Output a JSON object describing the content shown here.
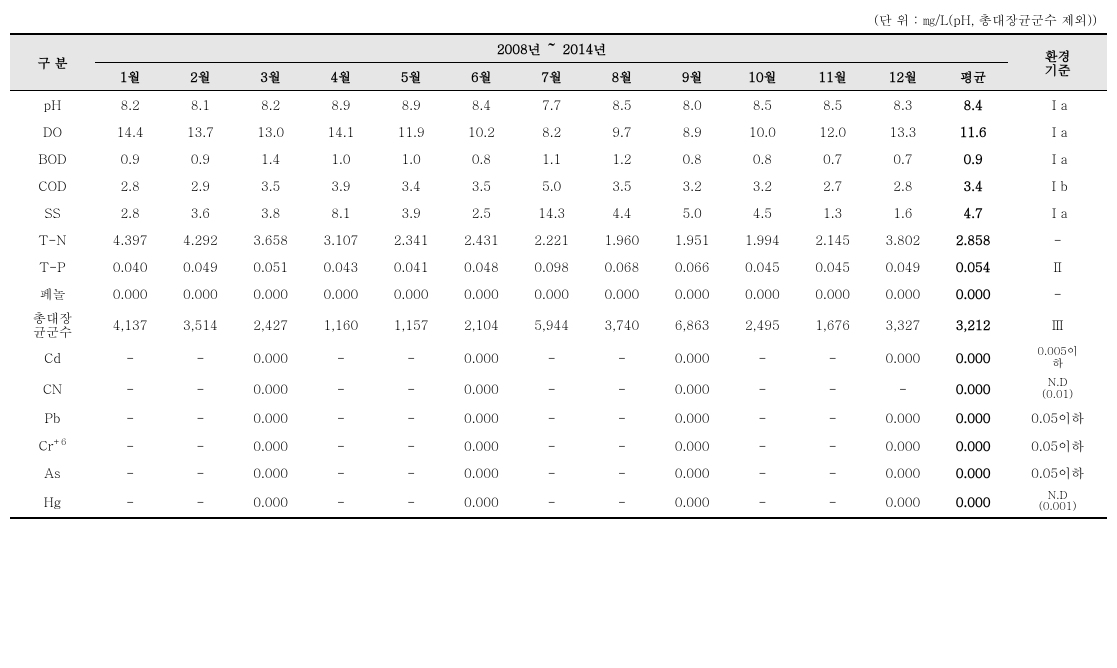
{
  "unit_note": "(단 위 : ㎎/L(pH, 총대장균군수 제외))",
  "header": {
    "category": "구 분",
    "year_range": "2008년 ～ 2014년",
    "env_std": "환경\n기준",
    "months": [
      "1월",
      "2월",
      "3월",
      "4월",
      "5월",
      "6월",
      "7월",
      "8월",
      "9월",
      "10월",
      "11월",
      "12월",
      "평균"
    ]
  },
  "rows": [
    {
      "label": "pH",
      "vals": [
        "8.2",
        "8.1",
        "8.2",
        "8.9",
        "8.9",
        "8.4",
        "7.7",
        "8.5",
        "8.0",
        "8.5",
        "8.5",
        "8.3"
      ],
      "avg": "8.4",
      "env": "Ⅰa"
    },
    {
      "label": "DO",
      "vals": [
        "14.4",
        "13.7",
        "13.0",
        "14.1",
        "11.9",
        "10.2",
        "8.2",
        "9.7",
        "8.9",
        "10.0",
        "12.0",
        "13.3"
      ],
      "avg": "11.6",
      "env": "Ⅰa"
    },
    {
      "label": "BOD",
      "vals": [
        "0.9",
        "0.9",
        "1.4",
        "1.0",
        "1.0",
        "0.8",
        "1.1",
        "1.2",
        "0.8",
        "0.8",
        "0.7",
        "0.7"
      ],
      "avg": "0.9",
      "env": "Ⅰa"
    },
    {
      "label": "COD",
      "vals": [
        "2.8",
        "2.9",
        "3.5",
        "3.9",
        "3.4",
        "3.5",
        "5.0",
        "3.5",
        "3.2",
        "3.2",
        "2.7",
        "2.8"
      ],
      "avg": "3.4",
      "env": "Ⅰb"
    },
    {
      "label": "SS",
      "vals": [
        "2.8",
        "3.6",
        "3.8",
        "8.1",
        "3.9",
        "2.5",
        "14.3",
        "4.4",
        "5.0",
        "4.5",
        "1.3",
        "1.6"
      ],
      "avg": "4.7",
      "env": "Ⅰa"
    },
    {
      "label": "T-N",
      "vals": [
        "4.397",
        "4.292",
        "3.658",
        "3.107",
        "2.341",
        "2.431",
        "2.221",
        "1.960",
        "1.951",
        "1.994",
        "2.145",
        "3.802"
      ],
      "avg": "2.858",
      "env": "-"
    },
    {
      "label": "T-P",
      "vals": [
        "0.040",
        "0.049",
        "0.051",
        "0.043",
        "0.041",
        "0.048",
        "0.098",
        "0.068",
        "0.066",
        "0.045",
        "0.045",
        "0.049"
      ],
      "avg": "0.054",
      "env": "Ⅱ"
    },
    {
      "label": "페놀",
      "vals": [
        "0.000",
        "0.000",
        "0.000",
        "0.000",
        "0.000",
        "0.000",
        "0.000",
        "0.000",
        "0.000",
        "0.000",
        "0.000",
        "0.000"
      ],
      "avg": "0.000",
      "env": "-"
    },
    {
      "label": "총대장\n균군수",
      "vals": [
        "4,137",
        "3,514",
        "2,427",
        "1,160",
        "1,157",
        "2,104",
        "5,944",
        "3,740",
        "6,863",
        "2,495",
        "1,676",
        "3,327"
      ],
      "avg": "3,212",
      "env": "Ⅲ",
      "multiline": true
    },
    {
      "label": "Cd",
      "vals": [
        "-",
        "-",
        "0.000",
        "-",
        "-",
        "0.000",
        "-",
        "-",
        "0.000",
        "-",
        "-",
        "0.000"
      ],
      "avg": "0.000",
      "env": "0.005이\n하",
      "env_small": true
    },
    {
      "label": "CN",
      "vals": [
        "-",
        "-",
        "0.000",
        "-",
        "-",
        "0.000",
        "-",
        "-",
        "0.000",
        "-",
        "-",
        "-"
      ],
      "avg": "0.000",
      "env": "N.D\n(0.01)",
      "env_small": true
    },
    {
      "label": "Pb",
      "vals": [
        "-",
        "-",
        "0.000",
        "-",
        "-",
        "0.000",
        "-",
        "-",
        "0.000",
        "-",
        "-",
        "0.000"
      ],
      "avg": "0.000",
      "env": "0.05이하"
    },
    {
      "label": "Cr+6",
      "vals": [
        "-",
        "-",
        "0.000",
        "-",
        "-",
        "0.000",
        "-",
        "-",
        "0.000",
        "-",
        "-",
        "0.000"
      ],
      "avg": "0.000",
      "env": "0.05이하",
      "sup": true
    },
    {
      "label": "As",
      "vals": [
        "-",
        "-",
        "0.000",
        "-",
        "-",
        "0.000",
        "-",
        "-",
        "0.000",
        "-",
        "-",
        "0.000"
      ],
      "avg": "0.000",
      "env": "0.05이하"
    },
    {
      "label": "Hg",
      "vals": [
        "-",
        "-",
        "0.000",
        "-",
        "-",
        "0.000",
        "-",
        "-",
        "0.000",
        "-",
        "-",
        "0.000"
      ],
      "avg": "0.000",
      "env": "N.D\n(0.001)",
      "env_small": true
    }
  ],
  "colors": {
    "header_bg": "#e6e6e6",
    "text": "#000000",
    "bg": "#ffffff",
    "border": "#000000"
  },
  "font_sizes": {
    "body": 13,
    "small": 11,
    "sup": 9
  },
  "col_widths_pct": [
    7.5,
    6.2,
    6.2,
    6.2,
    6.2,
    6.2,
    6.2,
    6.2,
    6.2,
    6.2,
    6.2,
    6.2,
    6.2,
    6.2,
    8.7
  ]
}
